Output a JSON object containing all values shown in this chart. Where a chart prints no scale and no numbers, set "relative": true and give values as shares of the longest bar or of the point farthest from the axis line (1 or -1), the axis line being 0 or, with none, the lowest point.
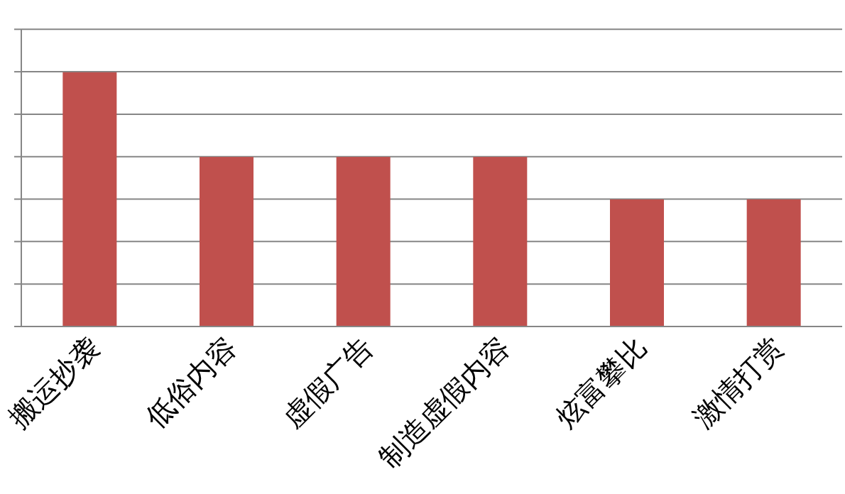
{
  "chart_data": {
    "type": "bar",
    "relative": true,
    "grid": "y",
    "categories": [
      "搬运抄袭",
      "低俗内容",
      "虚假广告",
      "制造虚假内容",
      "炫富攀比",
      "激情打赏"
    ],
    "values": [
      1,
      0.667,
      0.667,
      0.667,
      0.5,
      0.5
    ],
    "color": "#c0504d"
  }
}
